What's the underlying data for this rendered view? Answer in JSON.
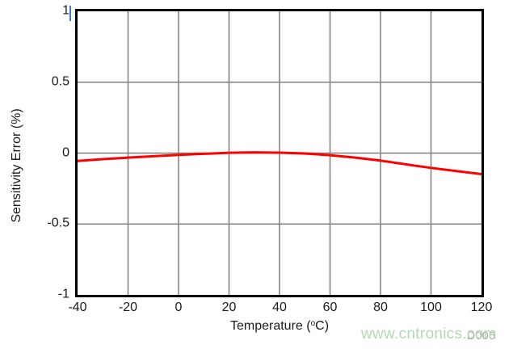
{
  "chart_data": {
    "type": "line",
    "title": "",
    "xlabel": "Temperature (°C)",
    "xlabel_parts": {
      "prefix": "Temperature (",
      "sup": "o",
      "suffix": "C)"
    },
    "ylabel": "Sensitivity Error (%)",
    "xlim": [
      -40,
      120
    ],
    "ylim": [
      -1,
      1
    ],
    "x_ticks": [
      -40,
      -20,
      0,
      20,
      40,
      60,
      80,
      100,
      120
    ],
    "y_ticks": [
      1,
      0.5,
      0,
      -0.5,
      -1
    ],
    "grid": true,
    "legend": "none",
    "series": [
      {
        "name": "Sensitivity Error",
        "color": "#ff0000",
        "x": [
          -40,
          -30,
          -20,
          -10,
          0,
          10,
          20,
          30,
          40,
          50,
          60,
          70,
          80,
          90,
          100,
          110,
          120
        ],
        "y": [
          -0.055,
          -0.043,
          -0.032,
          -0.022,
          -0.013,
          -0.005,
          0.002,
          0.005,
          0.003,
          -0.003,
          -0.015,
          -0.032,
          -0.053,
          -0.079,
          -0.104,
          -0.127,
          -0.148
        ]
      }
    ]
  },
  "footer": {
    "watermark": "www.cntronics.com",
    "figure_code": "D006"
  },
  "colors": {
    "grid": "#7f7f7f",
    "axis_box": "#000000",
    "curve": "#ff0000",
    "text": "#1a1a1a",
    "watermark": "#b2d9b2",
    "figure_code": "#a6a6a6",
    "cursor_artifact": "#3d7cc9"
  }
}
